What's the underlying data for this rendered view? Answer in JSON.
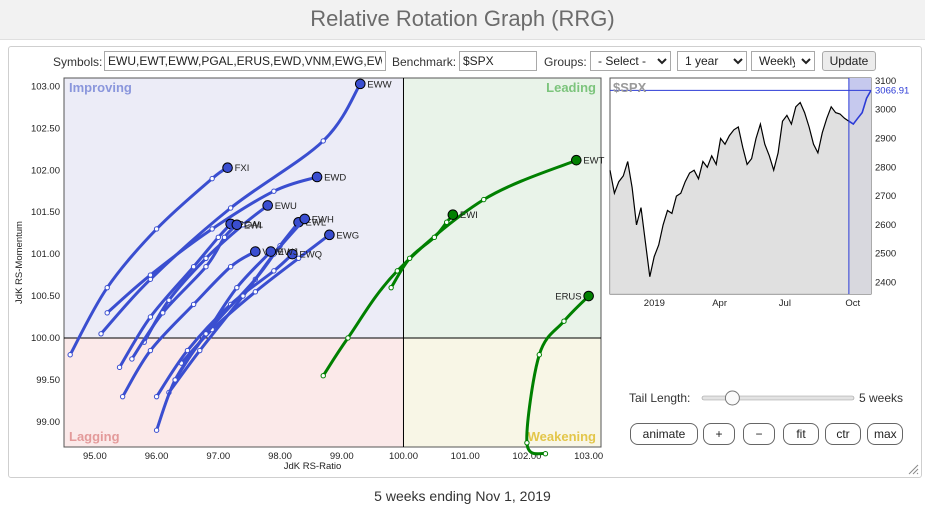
{
  "page": {
    "title": "Relative Rotation Graph (RRG)",
    "footer": "5 weeks ending Nov 1, 2019"
  },
  "controls": {
    "symbols_label": "Symbols:",
    "symbols_value": "EWU,EWT,EWW,PGAL,ERUS,EWD,VNM,EWG,EW",
    "benchmark_label": "Benchmark:",
    "benchmark_value": "$SPX",
    "groups_label": "Groups:",
    "groups_value": "- Select -",
    "period_value": "1 year",
    "frequency_value": "Weekly",
    "update_label": "Update",
    "tail_length_label": "Tail Length:",
    "tail_length_value": "5 weeks",
    "tail_length_fraction": 0.2,
    "buttons": {
      "animate": "animate",
      "plus": "+",
      "minus": "−",
      "fit": "fit",
      "ctr": "ctr",
      "max": "max"
    }
  },
  "colors": {
    "leading": "#008000",
    "improving": "#3a4ed0",
    "lagging_bg": "#fbe9e9",
    "improving_bg": "#ececf7",
    "leading_bg": "#e9f3e9",
    "weakening_bg": "#f8f6e6"
  },
  "chart_data": [
    {
      "type": "scatter",
      "xlabel": "JdK RS-Ratio",
      "ylabel": "JdK RS-Momentum",
      "xlim": [
        94.5,
        103.2
      ],
      "ylim": [
        98.7,
        103.1
      ],
      "xticks": [
        "95.00",
        "96.00",
        "97.00",
        "98.00",
        "99.00",
        "100.00",
        "101.00",
        "102.00",
        "103.00"
      ],
      "yticks": [
        "99.00",
        "99.50",
        "100.00",
        "100.50",
        "101.00",
        "101.50",
        "102.00",
        "102.50",
        "103.00"
      ],
      "quadrants": {
        "improving": "Improving",
        "leading": "Leading",
        "lagging": "Lagging",
        "weakening": "Weakening"
      },
      "series": [
        {
          "name": "EWW",
          "color": "#3a4ed0",
          "points": [
            [
              95.1,
              100.05
            ],
            [
              95.9,
              100.7
            ],
            [
              97.2,
              101.55
            ],
            [
              98.7,
              102.35
            ],
            [
              99.3,
              103.03
            ]
          ]
        },
        {
          "name": "FXI",
          "color": "#3a4ed0",
          "points": [
            [
              94.6,
              99.8
            ],
            [
              95.2,
              100.6
            ],
            [
              96.0,
              101.3
            ],
            [
              96.9,
              101.9
            ],
            [
              97.15,
              102.03
            ]
          ]
        },
        {
          "name": "EWD",
          "color": "#3a4ed0",
          "points": [
            [
              95.2,
              100.3
            ],
            [
              95.9,
              100.75
            ],
            [
              96.9,
              101.3
            ],
            [
              97.9,
              101.75
            ],
            [
              98.6,
              101.92
            ]
          ]
        },
        {
          "name": "EWU",
          "color": "#3a4ed0",
          "points": [
            [
              95.8,
              99.95
            ],
            [
              96.2,
              100.45
            ],
            [
              96.8,
              100.95
            ],
            [
              97.4,
              101.35
            ],
            [
              97.8,
              101.58
            ]
          ]
        },
        {
          "name": "PGAL",
          "color": "#3a4ed0",
          "points": [
            [
              95.4,
              99.65
            ],
            [
              95.9,
              100.25
            ],
            [
              96.6,
              100.85
            ],
            [
              97.0,
              101.2
            ],
            [
              97.2,
              101.36
            ]
          ]
        },
        {
          "name": "EWI",
          "color": "#3a4ed0",
          "points": [
            [
              95.6,
              99.75
            ],
            [
              96.1,
              100.3
            ],
            [
              96.8,
              100.85
            ],
            [
              97.1,
              101.2
            ],
            [
              97.3,
              101.35
            ]
          ]
        },
        {
          "name": "EWG",
          "color": "#3a4ed0",
          "points": [
            [
              96.4,
              99.7
            ],
            [
              96.9,
              100.1
            ],
            [
              97.6,
              100.55
            ],
            [
              98.3,
              100.95
            ],
            [
              98.8,
              101.23
            ]
          ]
        },
        {
          "name": "EWQ",
          "color": "#3a4ed0",
          "points": [
            [
              96.0,
              99.3
            ],
            [
              96.5,
              99.85
            ],
            [
              97.2,
              100.4
            ],
            [
              97.9,
              100.8
            ],
            [
              98.2,
              101.0
            ]
          ]
        },
        {
          "name": "EWL",
          "color": "#3a4ed0",
          "points": [
            [
              96.3,
              99.5
            ],
            [
              96.8,
              100.05
            ],
            [
              97.6,
              100.7
            ],
            [
              98.0,
              101.1
            ],
            [
              98.3,
              101.38
            ]
          ]
        },
        {
          "name": "EWH",
          "color": "#3a4ed0",
          "points": [
            [
              96.2,
              99.35
            ],
            [
              96.7,
              99.85
            ],
            [
              97.4,
              100.5
            ],
            [
              97.9,
              101.0
            ],
            [
              98.4,
              101.42
            ]
          ]
        },
        {
          "name": "VNM",
          "color": "#3a4ed0",
          "points": [
            [
              95.45,
              99.3
            ],
            [
              95.9,
              99.85
            ],
            [
              96.6,
              100.4
            ],
            [
              97.2,
              100.85
            ],
            [
              97.6,
              101.03
            ]
          ]
        },
        {
          "name": "EWJ",
          "color": "#3a4ed0",
          "points": [
            [
              96.0,
              98.9
            ],
            [
              96.3,
              99.5
            ],
            [
              96.8,
              100.05
            ],
            [
              97.3,
              100.6
            ],
            [
              97.85,
              101.03
            ]
          ]
        },
        {
          "name": "EWT",
          "color": "#008000",
          "points": [
            [
              98.7,
              99.55
            ],
            [
              99.1,
              100.0
            ],
            [
              99.9,
              100.8
            ],
            [
              101.3,
              101.65
            ],
            [
              102.8,
              102.12
            ]
          ]
        },
        {
          "name": "EWI",
          "color": "#008000",
          "points": [
            [
              99.8,
              100.6
            ],
            [
              100.1,
              100.95
            ],
            [
              100.5,
              101.2
            ],
            [
              100.7,
              101.38
            ],
            [
              100.8,
              101.47
            ]
          ]
        },
        {
          "name": "ERUS",
          "color": "#008000",
          "points": [
            [
              102.3,
              98.62
            ],
            [
              102.0,
              98.75
            ],
            [
              102.2,
              99.8
            ],
            [
              102.6,
              100.2
            ],
            [
              103.0,
              100.5
            ]
          ]
        }
      ]
    },
    {
      "type": "line",
      "title": "$SPX",
      "xticks": [
        "2019",
        "Apr",
        "Jul",
        "Oct"
      ],
      "yticks": [
        "2400",
        "2500",
        "2600",
        "2700",
        "2800",
        "2900",
        "3000",
        "3100"
      ],
      "ylim": [
        2360,
        3110
      ],
      "last_value": "3066.91",
      "series": [
        {
          "name": "$SPX",
          "values": [
            2790,
            2710,
            2750,
            2770,
            2820,
            2730,
            2600,
            2660,
            2540,
            2420,
            2490,
            2530,
            2600,
            2650,
            2640,
            2700,
            2710,
            2750,
            2780,
            2790,
            2760,
            2820,
            2800,
            2840,
            2810,
            2900,
            2880,
            2910,
            2930,
            2940,
            2870,
            2810,
            2830,
            2900,
            2950,
            2880,
            2840,
            2790,
            2850,
            2960,
            2980,
            2950,
            3010,
            3025,
            2990,
            2940,
            2880,
            2850,
            2920,
            2970,
            3010,
            2990,
            2985,
            2970,
            2960,
            2950,
            2970,
            2990,
            3040,
            3066.91
          ]
        }
      ],
      "shaded_region_start_index": 54
    }
  ]
}
